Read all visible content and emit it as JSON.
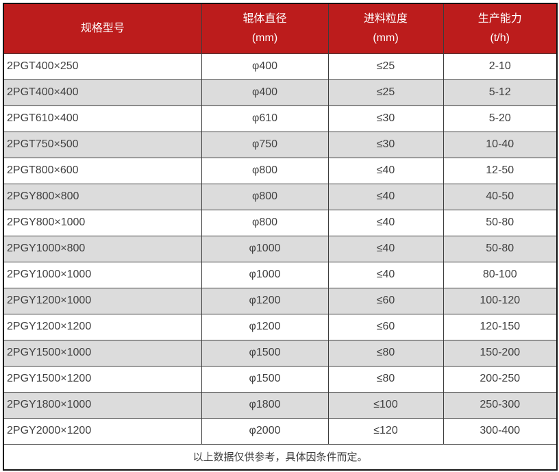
{
  "colors": {
    "header_bg": "#bc1c1c",
    "header_text": "#ffffff",
    "row_alt_bg": "#dcdcdc",
    "row_bg": "#ffffff",
    "body_text": "#404040",
    "border_inner": "#3c3c3c",
    "border_outer": "#111111"
  },
  "table": {
    "column_keys": [
      "model",
      "roller-diameter",
      "feed-size",
      "capacity"
    ],
    "columns": [
      {
        "title": "规格型号",
        "unit": ""
      },
      {
        "title": "辊体直径",
        "unit": "(mm)"
      },
      {
        "title": "进料粒度",
        "unit": "(mm)"
      },
      {
        "title": "生产能力",
        "unit": "(t/h)"
      }
    ],
    "rows": [
      [
        "2PGT400×250",
        "φ400",
        "≤25",
        "2-10"
      ],
      [
        "2PGT400×400",
        "φ400",
        "≤25",
        "5-12"
      ],
      [
        "2PGT610×400",
        "φ610",
        "≤30",
        "5-20"
      ],
      [
        "2PGT750×500",
        "φ750",
        "≤30",
        "10-40"
      ],
      [
        "2PGT800×600",
        "φ800",
        "≤40",
        "12-50"
      ],
      [
        "2PGY800×800",
        "φ800",
        "≤40",
        "40-50"
      ],
      [
        "2PGY800×1000",
        "φ800",
        "≤40",
        "50-80"
      ],
      [
        "2PGY1000×800",
        "φ1000",
        "≤40",
        "50-80"
      ],
      [
        "2PGY1000×1000",
        "φ1000",
        "≤40",
        "80-100"
      ],
      [
        "2PGY1200×1000",
        "φ1200",
        "≤60",
        "100-120"
      ],
      [
        "2PGY1200×1200",
        "φ1200",
        "≤60",
        "120-150"
      ],
      [
        "2PGY1500×1000",
        "φ1500",
        "≤80",
        "150-200"
      ],
      [
        "2PGY1500×1200",
        "φ1500",
        "≤80",
        "200-250"
      ],
      [
        "2PGY1800×1000",
        "φ1800",
        "≤100",
        "250-300"
      ],
      [
        "2PGY2000×1200",
        "φ2000",
        "≤120",
        "300-400"
      ]
    ],
    "footer_note": "以上数据仅供参考，具体因条件而定。"
  }
}
